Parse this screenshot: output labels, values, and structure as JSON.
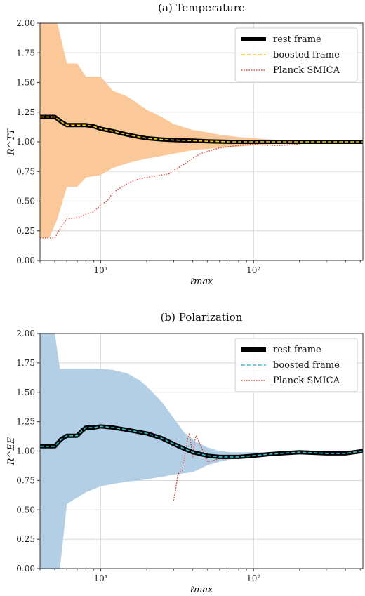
{
  "colors": {
    "temperature_band": "#fbc89a",
    "polarization_band": "#b3cfe6",
    "rest_frame": "#000000",
    "boosted_temperature": "#f5c518",
    "boosted_polarization": "#2ec4d8",
    "planck": "#d9352a",
    "grid": "#d8d8d8"
  },
  "chart_data": [
    {
      "type": "line",
      "panel": "a",
      "title": "(a) Temperature",
      "xlabel": "ℓmax",
      "ylabel": "R^TT",
      "x_scale": "log",
      "xlim": [
        4,
        520
      ],
      "ylim": [
        0,
        2
      ],
      "yticks": [
        "0.00",
        "0.25",
        "0.50",
        "0.75",
        "1.00",
        "1.25",
        "1.50",
        "1.75",
        "2.00"
      ],
      "xticks": [
        "10¹",
        "10²"
      ],
      "grid": true,
      "legend_position": "top-right",
      "legend": [
        "rest frame",
        "boosted frame",
        "Planck SMICA"
      ],
      "band": {
        "x": [
          4,
          4.6,
          5.2,
          6,
          7,
          8,
          10,
          12,
          15,
          20,
          25,
          30,
          40,
          50,
          60,
          80,
          100,
          130,
          160,
          200,
          300,
          520
        ],
        "upper": [
          2.0,
          2.0,
          2.0,
          1.66,
          1.66,
          1.55,
          1.55,
          1.43,
          1.38,
          1.27,
          1.21,
          1.15,
          1.1,
          1.08,
          1.06,
          1.04,
          1.03,
          1.02,
          1.015,
          1.01,
          1.005,
          1.003
        ],
        "lower": [
          0.19,
          0.19,
          0.35,
          0.62,
          0.62,
          0.7,
          0.72,
          0.78,
          0.82,
          0.86,
          0.88,
          0.9,
          0.93,
          0.94,
          0.95,
          0.96,
          0.97,
          0.98,
          0.985,
          0.99,
          0.995,
          0.997
        ]
      },
      "series": [
        {
          "name": "rest frame",
          "style": "solid-thick",
          "x": [
            4,
            5,
            5.5,
            6,
            7,
            8,
            9,
            10,
            12,
            15,
            18,
            20,
            25,
            30,
            40,
            50,
            70,
            100,
            150,
            200,
            300,
            520
          ],
          "y": [
            1.21,
            1.21,
            1.17,
            1.14,
            1.14,
            1.14,
            1.13,
            1.11,
            1.09,
            1.06,
            1.04,
            1.03,
            1.02,
            1.015,
            1.01,
            1.005,
            1.0,
            1.0,
            1.0,
            1.0,
            1.0,
            1.0
          ]
        },
        {
          "name": "boosted frame",
          "style": "dashed",
          "x": [
            4,
            5,
            5.5,
            6,
            7,
            8,
            9,
            10,
            12,
            15,
            18,
            20,
            25,
            30,
            40,
            50,
            70,
            100,
            150,
            200,
            300,
            520
          ],
          "y": [
            1.21,
            1.21,
            1.17,
            1.14,
            1.14,
            1.14,
            1.13,
            1.11,
            1.09,
            1.06,
            1.04,
            1.03,
            1.02,
            1.015,
            1.01,
            1.005,
            1.0,
            1.0,
            1.0,
            1.0,
            1.0,
            1.0
          ]
        },
        {
          "name": "Planck SMICA",
          "style": "dotted",
          "x": [
            4,
            5,
            5.6,
            6,
            7,
            8,
            9,
            10,
            11,
            12,
            13,
            15,
            17,
            20,
            25,
            28,
            30,
            35,
            40,
            45,
            50,
            60,
            70,
            80,
            100,
            120,
            150,
            200
          ],
          "y": [
            0.19,
            0.19,
            0.3,
            0.35,
            0.36,
            0.39,
            0.41,
            0.47,
            0.5,
            0.57,
            0.6,
            0.65,
            0.68,
            0.7,
            0.72,
            0.73,
            0.76,
            0.81,
            0.86,
            0.9,
            0.92,
            0.95,
            0.96,
            0.97,
            0.98,
            0.97,
            0.97,
            0.98
          ]
        }
      ]
    },
    {
      "type": "line",
      "panel": "b",
      "title": "(b) Polarization",
      "xlabel": "ℓmax",
      "ylabel": "R^EE",
      "x_scale": "log",
      "xlim": [
        4,
        520
      ],
      "ylim": [
        0,
        2
      ],
      "yticks": [
        "0.00",
        "0.25",
        "0.50",
        "0.75",
        "1.00",
        "1.25",
        "1.50",
        "1.75",
        "2.00"
      ],
      "xticks": [
        "10¹",
        "10²"
      ],
      "grid": true,
      "legend_position": "top-right",
      "legend": [
        "rest frame",
        "boosted frame",
        "Planck SMICA"
      ],
      "band": {
        "x": [
          4,
          4.5,
          5,
          5.4,
          6,
          8,
          10,
          12,
          15,
          18,
          20,
          25,
          30,
          35,
          40,
          45,
          50,
          60,
          70,
          80,
          100,
          150,
          200,
          300,
          520
        ],
        "upper": [
          2.0,
          2.0,
          2.0,
          1.7,
          1.7,
          1.7,
          1.7,
          1.69,
          1.66,
          1.6,
          1.55,
          1.42,
          1.28,
          1.16,
          1.1,
          1.06,
          1.03,
          1.0,
          0.99,
          0.99,
          0.99,
          0.99,
          0.995,
          1.0,
          1.0
        ],
        "lower": [
          0.0,
          0.0,
          0.0,
          0.0,
          0.55,
          0.65,
          0.7,
          0.72,
          0.74,
          0.75,
          0.76,
          0.78,
          0.8,
          0.81,
          0.82,
          0.85,
          0.88,
          0.91,
          0.93,
          0.94,
          0.95,
          0.96,
          0.97,
          0.98,
          0.985
        ]
      },
      "series": [
        {
          "name": "rest frame",
          "style": "solid-thick",
          "x": [
            4,
            5,
            5.5,
            6,
            7,
            7.5,
            8,
            9,
            10,
            12,
            15,
            20,
            25,
            30,
            35,
            40,
            50,
            60,
            70,
            80,
            100,
            120,
            150,
            200,
            300,
            400,
            520
          ],
          "y": [
            1.04,
            1.04,
            1.1,
            1.13,
            1.13,
            1.17,
            1.2,
            1.2,
            1.21,
            1.2,
            1.18,
            1.15,
            1.11,
            1.06,
            1.02,
            0.99,
            0.96,
            0.95,
            0.95,
            0.95,
            0.96,
            0.97,
            0.98,
            0.99,
            0.98,
            0.98,
            1.0
          ]
        },
        {
          "name": "boosted frame",
          "style": "dashed",
          "x": [
            4,
            5,
            5.5,
            6,
            7,
            7.5,
            8,
            9,
            10,
            12,
            15,
            20,
            25,
            30,
            35,
            40,
            50,
            60,
            70,
            80,
            100,
            120,
            150,
            200,
            300,
            400,
            520
          ],
          "y": [
            1.04,
            1.04,
            1.1,
            1.13,
            1.13,
            1.17,
            1.2,
            1.2,
            1.21,
            1.2,
            1.18,
            1.15,
            1.11,
            1.06,
            1.02,
            0.99,
            0.96,
            0.95,
            0.95,
            0.95,
            0.96,
            0.97,
            0.98,
            0.99,
            0.98,
            0.98,
            1.0
          ]
        },
        {
          "name": "Planck SMICA",
          "style": "dotted",
          "x": [
            30,
            31,
            32,
            33,
            34,
            35,
            36,
            37,
            38,
            39,
            40,
            41,
            42,
            43,
            45,
            48,
            50,
            55,
            60,
            65,
            70,
            80,
            90,
            100,
            120,
            150,
            200,
            250,
            300,
            400,
            520
          ],
          "y": [
            0.58,
            0.68,
            0.8,
            0.82,
            0.83,
            0.92,
            1.0,
            1.1,
            1.15,
            1.05,
            0.95,
            1.07,
            1.13,
            1.1,
            1.05,
            0.96,
            0.91,
            0.92,
            0.94,
            0.93,
            0.95,
            0.96,
            0.96,
            0.97,
            0.97,
            0.98,
            0.99,
            1.0,
            0.99,
            0.99,
            0.99
          ]
        }
      ]
    }
  ]
}
